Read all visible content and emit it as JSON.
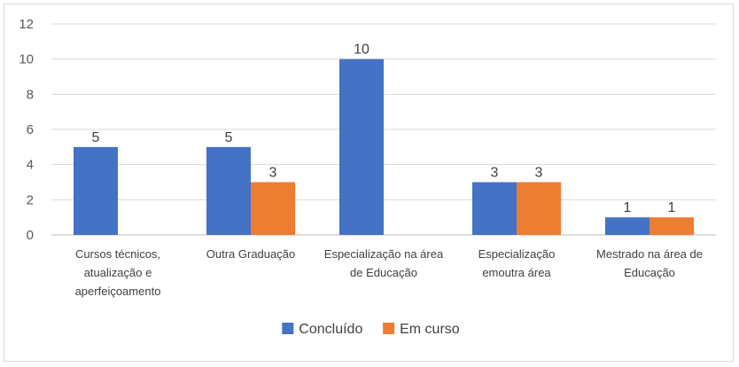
{
  "chart_data": {
    "type": "bar",
    "title": "",
    "xlabel": "",
    "ylabel": "",
    "ylim": [
      0,
      12
    ],
    "yticks": [
      0,
      2,
      4,
      6,
      8,
      10,
      12
    ],
    "grid": true,
    "legend_position": "bottom",
    "categories": [
      [
        "Cursos técnicos,",
        "atualização e",
        "aperfeiçoamento"
      ],
      [
        "Outra Graduação"
      ],
      [
        "Especialização na área",
        "de Educação"
      ],
      [
        "Especialização",
        "emoutra área"
      ],
      [
        "Mestrado na área de",
        "Educação"
      ]
    ],
    "series": [
      {
        "name": "Concluído",
        "color": "#4472C4",
        "values": [
          5,
          5,
          10,
          3,
          1
        ]
      },
      {
        "name": "Em curso",
        "color": "#ED7D31",
        "values": [
          null,
          3,
          null,
          3,
          1
        ]
      }
    ]
  }
}
